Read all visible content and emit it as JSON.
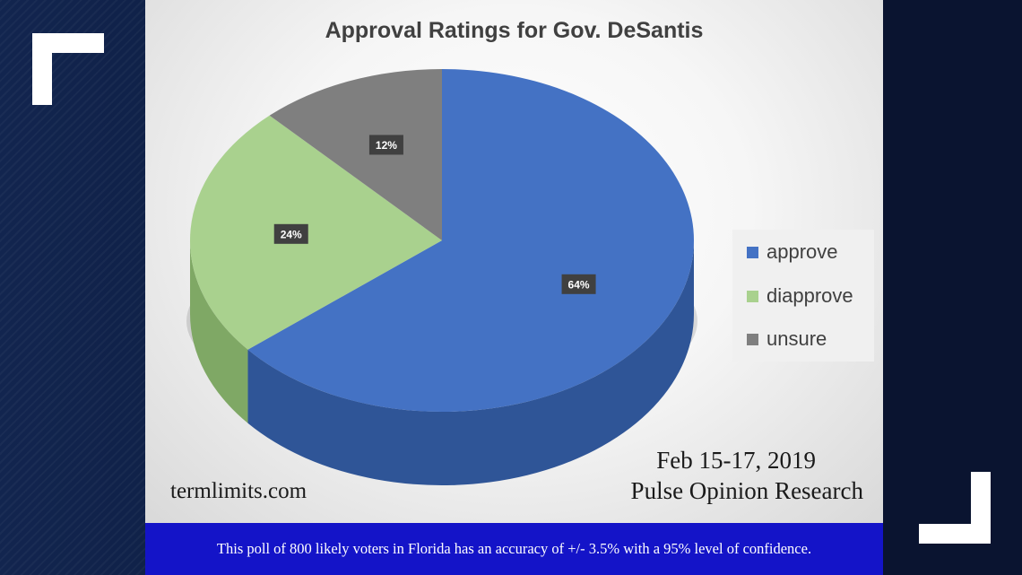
{
  "chart_data": {
    "type": "pie",
    "title": "Approval Ratings for Gov. DeSantis",
    "categories": [
      "approve",
      "diapprove",
      "unsure"
    ],
    "values": [
      64,
      24,
      12
    ],
    "labels": [
      "64%",
      "24%",
      "12%"
    ],
    "colors": [
      "#4472c4",
      "#a9d18e",
      "#7f7f7f"
    ],
    "side_colors": [
      "#2f5597",
      "#7fa865",
      "#5a5a5a"
    ],
    "legend_position": "right",
    "style": "3d"
  },
  "source": "termlimits.com",
  "poll_date": "Feb 15-17, 2019",
  "pollster": "Pulse Opinion Research",
  "footer_note": "This poll of 800 likely voters in Florida has an accuracy of +/- 3.5% with a 95% level of confidence."
}
